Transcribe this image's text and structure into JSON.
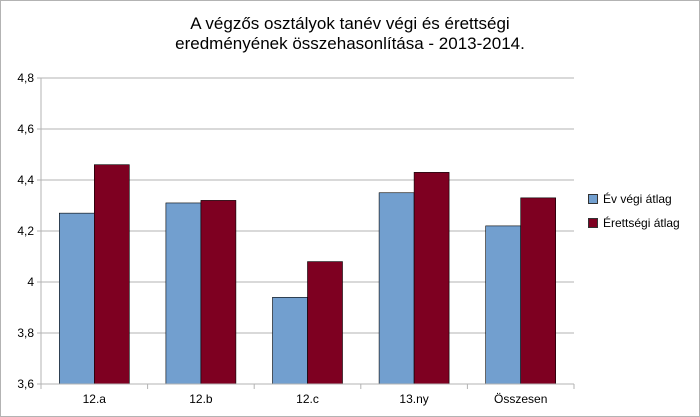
{
  "chart_data": {
    "type": "bar",
    "title": "A végzős osztályok tanév végi és érettségi\neredményének összehasonlítása - 2013-2014.",
    "categories": [
      "12.a",
      "12.b",
      "12.c",
      "13.ny",
      "Összesen"
    ],
    "series": [
      {
        "name": "Év végi átlag",
        "color": "#729fcf",
        "values": [
          4.27,
          4.31,
          3.94,
          4.35,
          4.22
        ]
      },
      {
        "name": "Érettségi átlag",
        "color": "#7e0021",
        "values": [
          4.46,
          4.32,
          4.08,
          4.43,
          4.33
        ]
      }
    ],
    "ylim": [
      3.6,
      4.8
    ],
    "yticks": [
      3.6,
      3.8,
      4.0,
      4.2,
      4.4,
      4.6,
      4.8
    ],
    "ytick_labels": [
      "3,6",
      "3,8",
      "4",
      "4,2",
      "4,4",
      "4,6",
      "4,8"
    ],
    "xlabel": "",
    "ylabel": "",
    "grid": true,
    "legend": "right"
  }
}
